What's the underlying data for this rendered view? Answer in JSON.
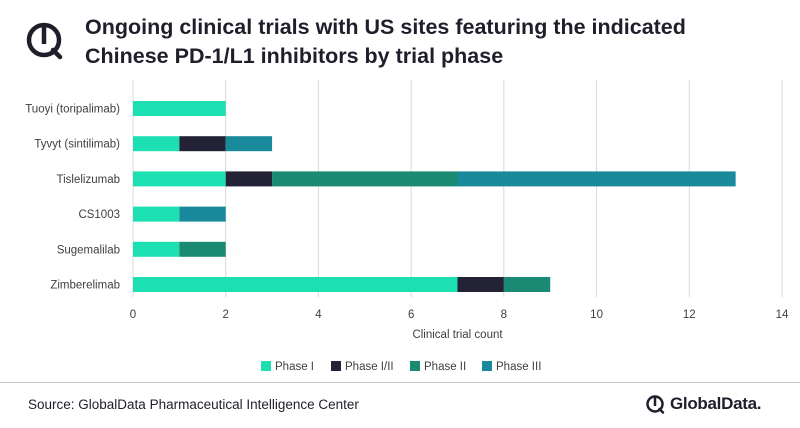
{
  "header": {
    "title_line1": "Ongoing clinical trials with US sites featuring the indicated",
    "title_line2": "Chinese PD-1/L1 inhibitors by trial phase",
    "logo_icon": "globaldata-mark-icon"
  },
  "footer": {
    "source": "Source: GlobalData Pharmaceutical Intelligence Center",
    "brand_name": "GlobalData.",
    "brand_icon": "globaldata-mark-icon"
  },
  "colors": {
    "phase_i": "#1de0b2",
    "phase_i_ii": "#242336",
    "phase_ii": "#1a8a73",
    "phase_iii": "#188a9b",
    "grid": "#d9d9d9",
    "text": "#404040"
  },
  "chart_data": {
    "type": "bar",
    "orientation": "horizontal",
    "stacked": true,
    "categories": [
      "Tuoyi (toripalimab)",
      "Tyvyt (sintilimab)",
      "Tislelizumab",
      "CS1003",
      "Sugemalilab",
      "Zimberelimab"
    ],
    "series": [
      {
        "name": "Phase I",
        "color": "#1de0b2",
        "values": [
          2,
          1,
          2,
          1,
          1,
          7
        ]
      },
      {
        "name": "Phase I/II",
        "color": "#242336",
        "values": [
          0,
          1,
          1,
          0,
          0,
          1
        ]
      },
      {
        "name": "Phase II",
        "color": "#1a8a73",
        "values": [
          0,
          0,
          4,
          0,
          1,
          1
        ]
      },
      {
        "name": "Phase III",
        "color": "#188a9b",
        "values": [
          0,
          1,
          6,
          1,
          0,
          0
        ]
      }
    ],
    "xlabel": "Clinical trial count",
    "ylabel": "",
    "xlim": [
      0,
      14
    ],
    "xticks": [
      "0",
      "2",
      "4",
      "6",
      "8",
      "10",
      "12",
      "14"
    ],
    "grid": "vertical",
    "legend_position": "bottom"
  }
}
